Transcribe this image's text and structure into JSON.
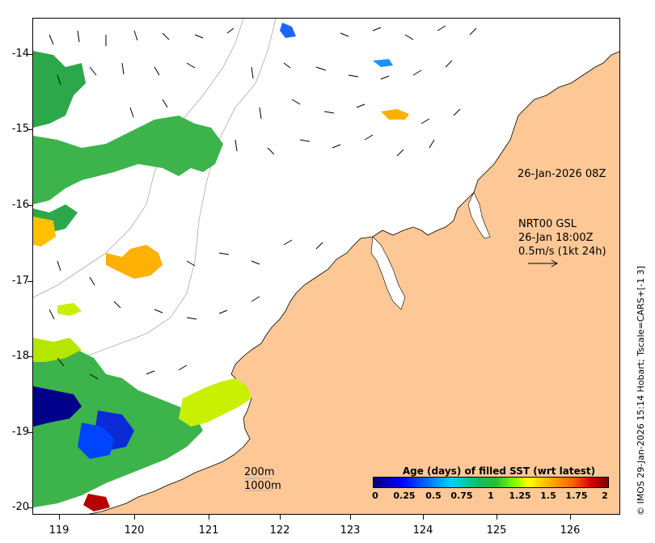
{
  "product_label": "NRT00 GSL",
  "product_time": "26-Jan 18:00Z",
  "current_scale": "0.5m/s (1kt 24h)",
  "image_time_label": "26-Jan-2026 08Z",
  "credit": "© IMOS 29-Jan-2026 15:14 Hobart; Tscale=CARS+[-1 3]",
  "isobath_labels": [
    "200m",
    "1000m"
  ],
  "colorbar": {
    "title": "Age (days) of filled SST (wrt latest)",
    "ticks": [
      "0",
      "0.25",
      "0.5",
      "0.75",
      "1",
      "1.25",
      "1.5",
      "1.75",
      "2"
    ]
  },
  "y_axis_ticks": [
    "-14",
    "-15",
    "-16",
    "-17",
    "-18",
    "-19",
    "-20"
  ],
  "x_axis_ticks": [
    "119",
    "120",
    "121",
    "122",
    "123",
    "124",
    "125",
    "126"
  ],
  "colors": {
    "land": "#fdc896",
    "ocean": "#ffffff",
    "coast": "#000000",
    "isobath": "#999999"
  }
}
